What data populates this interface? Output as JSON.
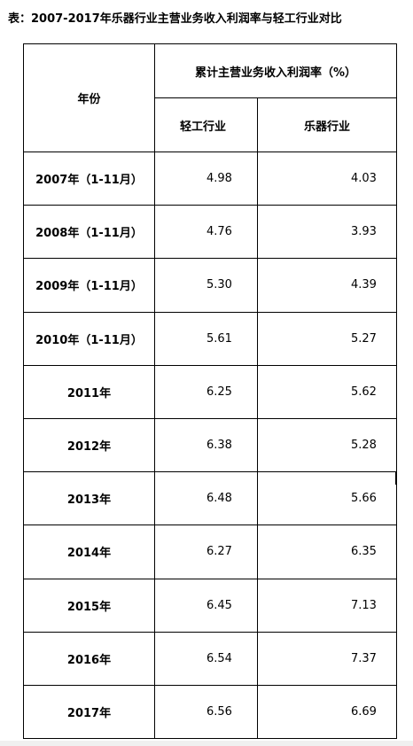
{
  "title": "表：2007-2017年乐器行业主营业务收入利润率与轻工行业对比",
  "table": {
    "header_year": "年份",
    "header_group": "累计主营业务收入利润率（%）",
    "col_light": "轻工行业",
    "col_music": "乐器行业",
    "rows": [
      {
        "year": "2007年（1-11月）",
        "light": "4.98",
        "music": "4.03"
      },
      {
        "year": "2008年（1-11月）",
        "light": "4.76",
        "music": "3.93"
      },
      {
        "year": "2009年（1-11月）",
        "light": "5.30",
        "music": "4.39"
      },
      {
        "year": "2010年（1-11月）",
        "light": "5.61",
        "music": "5.27"
      },
      {
        "year": "2011年",
        "light": "6.25",
        "music": "5.62"
      },
      {
        "year": "2012年",
        "light": "6.38",
        "music": "5.28"
      },
      {
        "year": "2013年",
        "light": "6.48",
        "music": "5.66"
      },
      {
        "year": "2014年",
        "light": "6.27",
        "music": "6.35"
      },
      {
        "year": "2015年",
        "light": "6.45",
        "music": "7.13"
      },
      {
        "year": "2016年",
        "light": "6.54",
        "music": "7.37"
      },
      {
        "year": "2017年",
        "light": "6.56",
        "music": "6.69"
      }
    ]
  }
}
